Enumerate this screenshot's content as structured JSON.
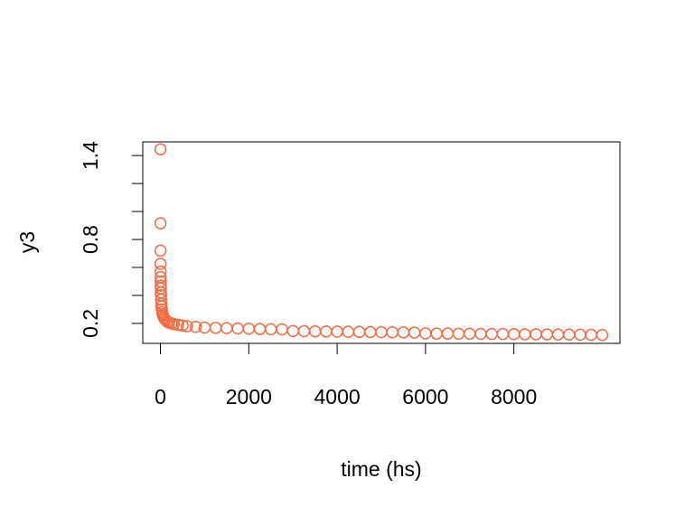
{
  "chart_data": {
    "type": "scatter",
    "xlabel": "time (hs)",
    "ylabel": "y3",
    "xlim": [
      -400,
      10400
    ],
    "ylim": [
      0.057,
      1.498
    ],
    "xticks": [
      0,
      2000,
      4000,
      6000,
      8000
    ],
    "yticks": [
      0.2,
      0.8,
      1.4
    ],
    "yminor_ticks": [
      0.4,
      0.6,
      1.0,
      1.2
    ],
    "color": "#f26b43",
    "x": [
      0,
      1,
      2,
      3,
      4,
      5,
      6,
      7,
      8,
      10,
      12,
      15,
      20,
      25,
      30,
      40,
      50,
      60,
      80,
      100,
      130,
      160,
      200,
      250,
      300,
      400,
      500,
      600,
      800,
      1000,
      1250,
      1500,
      1750,
      2000,
      2250,
      2500,
      2750,
      3000,
      3250,
      3500,
      3750,
      4000,
      4250,
      4500,
      4750,
      5000,
      5250,
      5500,
      5750,
      6000,
      6250,
      6500,
      6750,
      7000,
      7250,
      7500,
      7750,
      8000,
      8250,
      8500,
      8750,
      9000,
      9250,
      9500,
      9750,
      10000
    ],
    "y": [
      1.445,
      0.916,
      0.72,
      0.626,
      0.57,
      0.53,
      0.5,
      0.47,
      0.45,
      0.42,
      0.4,
      0.37,
      0.34,
      0.32,
      0.3,
      0.28,
      0.265,
      0.255,
      0.24,
      0.23,
      0.22,
      0.21,
      0.205,
      0.2,
      0.195,
      0.19,
      0.185,
      0.18,
      0.175,
      0.17,
      0.168,
      0.166,
      0.164,
      0.162,
      0.16,
      0.158,
      0.157,
      0.145,
      0.144,
      0.143,
      0.142,
      0.141,
      0.14,
      0.139,
      0.138,
      0.137,
      0.136,
      0.135,
      0.134,
      0.128,
      0.127,
      0.127,
      0.126,
      0.126,
      0.125,
      0.124,
      0.124,
      0.123,
      0.122,
      0.122,
      0.121,
      0.12,
      0.12,
      0.119,
      0.118,
      0.117
    ]
  }
}
